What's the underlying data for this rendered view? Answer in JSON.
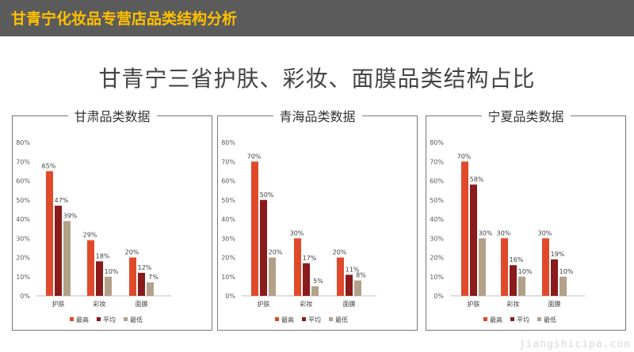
{
  "header": {
    "title": "甘青宁化妆品专营店品类结构分析"
  },
  "main_title": "甘青宁三省护肤、彩妆、面膜品类结构占比",
  "watermark": "jiangshicipa.com",
  "colors": {
    "header_bg": "#5b5b5b",
    "header_text": "#ffc000",
    "highest": "#e04a2b",
    "average": "#8b1a1a",
    "lowest": "#b3a088"
  },
  "chart_data": [
    {
      "type": "bar",
      "title": "甘肃品类数据",
      "categories": [
        "护肤",
        "彩妆",
        "面膜"
      ],
      "ylim": [
        0,
        80
      ],
      "yticks": [
        "0%",
        "10%",
        "20%",
        "30%",
        "40%",
        "50%",
        "60%",
        "70%",
        "80%"
      ],
      "legend_position": "bottom",
      "series": [
        {
          "name": "最高",
          "values": [
            65,
            29,
            20
          ],
          "labels": [
            "65%",
            "29%",
            "20%"
          ]
        },
        {
          "name": "平均",
          "values": [
            47,
            18,
            12
          ],
          "labels": [
            "47%",
            "18%",
            "12%"
          ]
        },
        {
          "name": "最低",
          "values": [
            39,
            10,
            7
          ],
          "labels": [
            "39%",
            "10%",
            "7%"
          ]
        }
      ]
    },
    {
      "type": "bar",
      "title": "青海品类数据",
      "categories": [
        "护肤",
        "彩妆",
        "面膜"
      ],
      "ylim": [
        0,
        80
      ],
      "yticks": [
        "0%",
        "10%",
        "20%",
        "30%",
        "40%",
        "50%",
        "60%",
        "70%",
        "80%"
      ],
      "legend_position": "bottom",
      "series": [
        {
          "name": "最高",
          "values": [
            70,
            30,
            20
          ],
          "labels": [
            "70%",
            "30%",
            "20%"
          ]
        },
        {
          "name": "平均",
          "values": [
            50,
            17,
            11
          ],
          "labels": [
            "50%",
            "17%",
            "11%"
          ]
        },
        {
          "name": "最低",
          "values": [
            20,
            5,
            8
          ],
          "labels": [
            "20%",
            "5%",
            "8%"
          ]
        }
      ]
    },
    {
      "type": "bar",
      "title": "宁夏品类数据",
      "categories": [
        "护肤",
        "彩妆",
        "面膜"
      ],
      "ylim": [
        0,
        80
      ],
      "yticks": [
        "0%",
        "10%",
        "20%",
        "30%",
        "40%",
        "50%",
        "60%",
        "70%",
        "80%"
      ],
      "legend_position": "bottom",
      "series": [
        {
          "name": "最高",
          "values": [
            70,
            30,
            30
          ],
          "labels": [
            "70%",
            "30%",
            "30%"
          ]
        },
        {
          "name": "平均",
          "values": [
            58,
            16,
            19
          ],
          "labels": [
            "58%",
            "16%",
            "19%"
          ]
        },
        {
          "name": "最低",
          "values": [
            30,
            10,
            10
          ],
          "labels": [
            "30%",
            "10%",
            "10%"
          ]
        }
      ]
    }
  ]
}
